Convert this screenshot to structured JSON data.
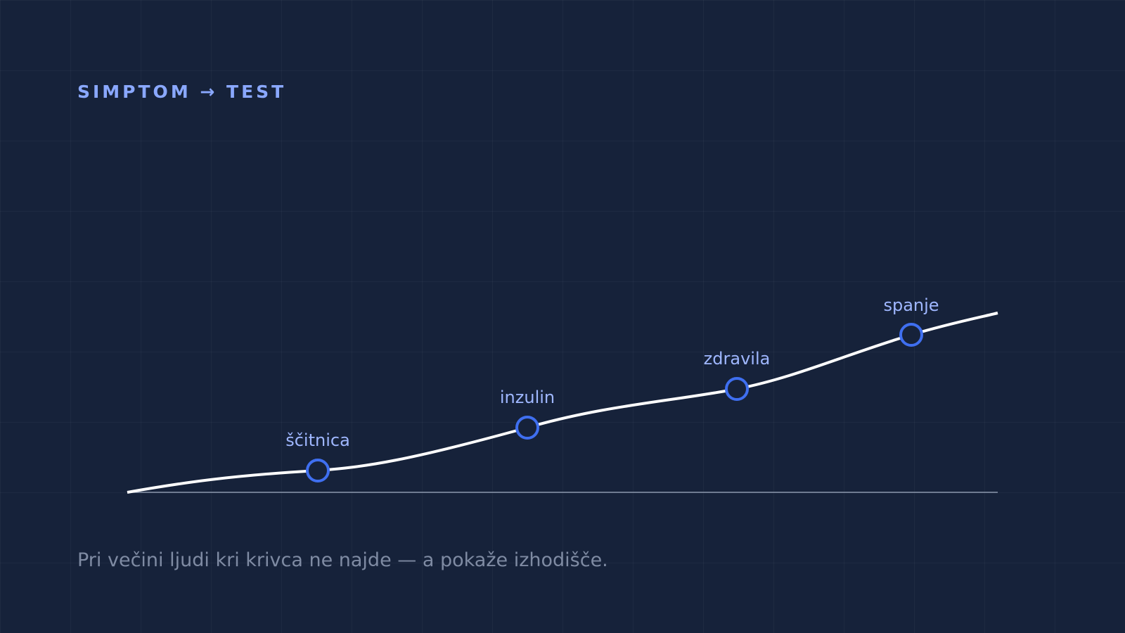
{
  "header": {
    "title": "SIMPTOM → TEST"
  },
  "nodes": [
    {
      "label": "ščitnica"
    },
    {
      "label": "inzulin"
    },
    {
      "label": "zdravila"
    },
    {
      "label": "spanje"
    }
  ],
  "caption": "Pri večini ljudi kri krivca ne najde — a pokaže izhodišče."
}
